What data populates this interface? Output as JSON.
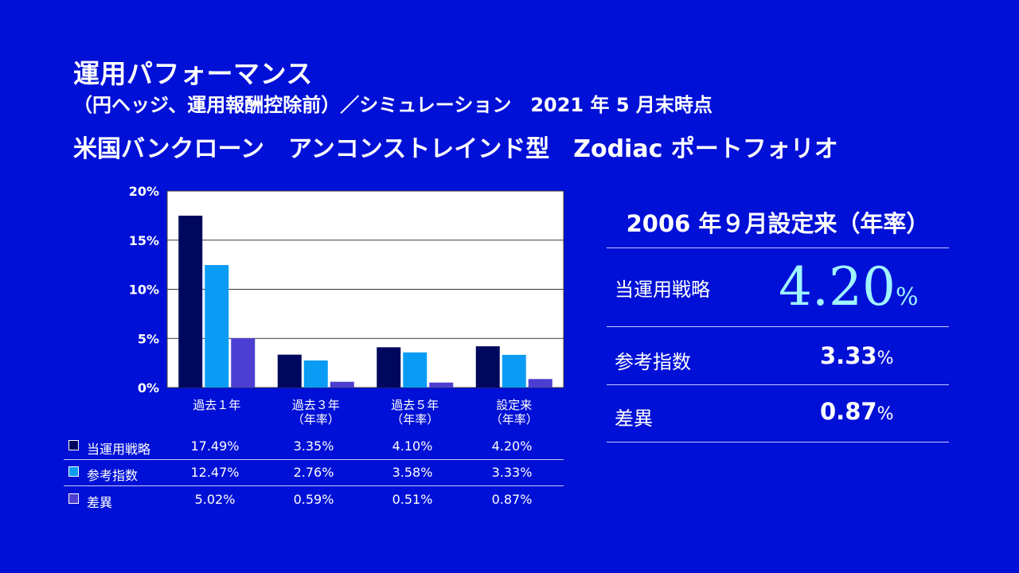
{
  "header": {
    "title": "運用パフォーマンス",
    "subtitle": "（円ヘッジ、運用報酬控除前）／シミュレーション　2021 年 5 月末時点",
    "fund_name": "米国バンクローン　アンコンストレインド型　Zodiac ポートフォリオ"
  },
  "chart_data": {
    "type": "bar",
    "categories": [
      "過去１年",
      "過去３年\n（年率）",
      "過去５年\n（年率）",
      "設定来\n（年率）"
    ],
    "series": [
      {
        "name": "当運用戦略",
        "values": [
          17.49,
          3.35,
          4.1,
          4.2
        ],
        "color": "#00085e"
      },
      {
        "name": "参考指数",
        "values": [
          12.47,
          2.76,
          3.58,
          3.33
        ],
        "color": "#0a9cf5"
      },
      {
        "name": "差異",
        "values": [
          5.02,
          0.59,
          0.51,
          0.87
        ],
        "color": "#4c3ed0"
      }
    ],
    "yticks": [
      "0%",
      "5%",
      "10%",
      "15%",
      "20%"
    ],
    "ylim": [
      0,
      20
    ],
    "grid": true,
    "plot_background": "#ffffff"
  },
  "table": {
    "rows": [
      {
        "label": "当運用戦略",
        "color": "#00085e",
        "values": [
          "17.49%",
          "3.35%",
          "4.10%",
          "4.20%"
        ]
      },
      {
        "label": "参考指数",
        "color": "#0a9cf5",
        "values": [
          "12.47%",
          "2.76%",
          "3.58%",
          "3.33%"
        ]
      },
      {
        "label": "差異",
        "color": "#4c3ed0",
        "values": [
          "5.02%",
          "0.59%",
          "0.51%",
          "0.87%"
        ]
      }
    ]
  },
  "panel": {
    "title": "2006 年９月設定来（年率）",
    "strategy_label": "当運用戦略",
    "strategy_value": "4.20",
    "benchmark_label": "参考指数",
    "benchmark_value": "3.33",
    "diff_label": "差異",
    "diff_value": "0.87",
    "percent": "%"
  },
  "colors": {
    "background": "#0010d6",
    "highlight": "#9ff4ff"
  }
}
